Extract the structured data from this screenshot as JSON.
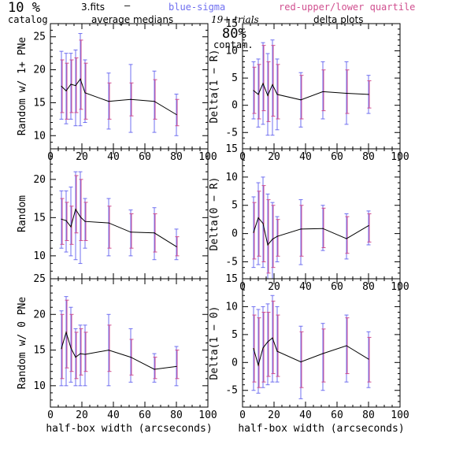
{
  "header": {
    "catalog_pct": "10 %",
    "catalog_label": "catalog",
    "file_name": "3.fits",
    "dash": "—",
    "avg_medians_label": "average medians",
    "blue_legend": "blue-sigma",
    "red_legend": "red-upper/lower quartile",
    "trials": "19+ trials",
    "contam_pct": "80%",
    "contam_label": "contam.",
    "delta_plots_label": "delta plots"
  },
  "colors": {
    "sigma": "#6f6ff0",
    "quartile": "#d04f8f",
    "line": "#000000"
  },
  "chart_data": [
    {
      "id": "random-1plus",
      "type": "line",
      "xlabel": "",
      "ylabel": "Random w/ 1+ PNe",
      "xlim": [
        0,
        100
      ],
      "ylim": [
        8,
        27
      ],
      "xticks": [
        0,
        20,
        40,
        60,
        80,
        100
      ],
      "yticks": [
        10,
        15,
        20,
        25
      ],
      "show_x_ticklabels": true,
      "show_y_ticklabels": true,
      "x": [
        7,
        10,
        13,
        16,
        19,
        22,
        37,
        51,
        66,
        80
      ],
      "y": [
        17.5,
        16.8,
        17.8,
        17.6,
        18.6,
        16.5,
        15.2,
        15.5,
        15.2,
        13.2
      ],
      "sigma_low": [
        12.5,
        11.8,
        12.5,
        11.5,
        11.5,
        12.0,
        11.0,
        10.5,
        10.5,
        10.0
      ],
      "sigma_high": [
        22.8,
        22.5,
        22.5,
        23.0,
        25.5,
        21.5,
        19.5,
        20.8,
        19.8,
        16.3
      ],
      "quart_low": [
        13.5,
        12.5,
        13.5,
        13.5,
        14.0,
        12.5,
        12.5,
        13.0,
        12.5,
        11.5
      ],
      "quart_high": [
        21.5,
        21.0,
        21.5,
        21.8,
        24.5,
        21.0,
        18.0,
        18.0,
        18.5,
        15.5
      ]
    },
    {
      "id": "delta-1-R",
      "type": "line",
      "xlabel": "",
      "ylabel": "Delta(1 − R)",
      "xlim": [
        0,
        100
      ],
      "ylim": [
        -8,
        15
      ],
      "xticks": [
        0,
        20,
        40,
        60,
        80,
        100
      ],
      "yticks": [
        -5,
        0,
        5,
        10,
        15
      ],
      "show_x_ticklabels": true,
      "show_y_ticklabels": true,
      "x": [
        7,
        10,
        13,
        16,
        19,
        22,
        37,
        51,
        66,
        80
      ],
      "y": [
        2.7,
        2.0,
        4.0,
        1.8,
        3.8,
        2.0,
        1.0,
        2.5,
        2.2,
        2.0
      ],
      "sigma_low": [
        -2.5,
        -4.0,
        -3.5,
        -5.5,
        -5.5,
        -4.5,
        -4.0,
        -2.5,
        -3.5,
        -1.5
      ],
      "sigma_high": [
        8.0,
        8.5,
        11.5,
        9.5,
        12.0,
        8.5,
        6.0,
        8.0,
        8.0,
        5.5
      ],
      "quart_low": [
        -1.5,
        -2.5,
        -1.0,
        -3.0,
        -2.0,
        -2.5,
        -2.5,
        -1.0,
        -1.5,
        -0.5
      ],
      "quart_high": [
        7.0,
        7.5,
        11.0,
        8.0,
        11.0,
        7.5,
        5.5,
        6.5,
        6.5,
        4.5
      ]
    },
    {
      "id": "random",
      "type": "line",
      "xlabel": "",
      "ylabel": "Random",
      "xlim": [
        0,
        100
      ],
      "ylim": [
        7,
        24
      ],
      "xticks": [
        0,
        20,
        40,
        60,
        80,
        100
      ],
      "yticks": [
        10,
        15,
        20
      ],
      "show_x_ticklabels": false,
      "show_y_ticklabels": true,
      "x": [
        7,
        10,
        13,
        16,
        19,
        22,
        37,
        51,
        66,
        80
      ],
      "y": [
        14.8,
        14.6,
        13.8,
        16.1,
        15.1,
        14.5,
        14.3,
        13.1,
        13.0,
        11.2
      ],
      "sigma_low": [
        11.0,
        10.5,
        10.0,
        9.5,
        9.0,
        11.0,
        10.0,
        10.0,
        9.5,
        9.5
      ],
      "sigma_high": [
        18.5,
        18.5,
        19.0,
        21.0,
        21.0,
        17.5,
        17.5,
        16.0,
        16.3,
        13.5
      ],
      "quart_low": [
        11.5,
        12.0,
        11.5,
        13.0,
        12.0,
        12.0,
        11.0,
        11.0,
        10.5,
        10.0
      ],
      "quart_high": [
        17.5,
        17.0,
        16.5,
        20.5,
        20.0,
        17.0,
        16.5,
        15.5,
        15.5,
        12.5
      ]
    },
    {
      "id": "delta-0-R",
      "type": "line",
      "xlabel": "",
      "ylabel": "Delta(0 − R)",
      "xlim": [
        0,
        100
      ],
      "ylim": [
        -8,
        15
      ],
      "xticks": [
        0,
        20,
        40,
        60,
        80,
        100
      ],
      "yticks": [
        -5,
        0,
        5,
        10,
        15
      ],
      "show_x_ticklabels": true,
      "show_y_ticklabels": true,
      "x": [
        7,
        10,
        13,
        16,
        19,
        22,
        37,
        51,
        66,
        80
      ],
      "y": [
        0.2,
        2.8,
        1.8,
        -2.0,
        -1.0,
        -0.5,
        0.8,
        0.9,
        -0.9,
        1.4
      ],
      "sigma_low": [
        -6.0,
        -5.5,
        -6.0,
        -8.0,
        -8.0,
        -5.0,
        -5.5,
        -3.0,
        -4.5,
        -2.0
      ],
      "sigma_high": [
        6.5,
        9.0,
        10.0,
        7.0,
        5.5,
        3.0,
        6.0,
        5.0,
        3.5,
        4.0
      ],
      "quart_low": [
        -4.5,
        -4.0,
        -5.0,
        -7.0,
        -6.0,
        -4.0,
        -4.0,
        -2.5,
        -3.5,
        -1.5
      ],
      "quart_high": [
        5.5,
        7.5,
        8.5,
        6.0,
        5.0,
        2.5,
        5.0,
        4.5,
        3.0,
        3.5
      ]
    },
    {
      "id": "random-0",
      "type": "line",
      "xlabel": "half-box width (arcseconds)",
      "ylabel": "Random w/ 0 PNe",
      "xlim": [
        0,
        100
      ],
      "ylim": [
        7,
        25
      ],
      "xticks": [
        0,
        20,
        40,
        60,
        80,
        100
      ],
      "yticks": [
        10,
        15,
        20,
        25
      ],
      "show_x_ticklabels": true,
      "show_y_ticklabels": true,
      "x": [
        7,
        10,
        13,
        16,
        19,
        22,
        37,
        51,
        66,
        80
      ],
      "y": [
        15.2,
        17.5,
        15.3,
        14.0,
        14.5,
        14.4,
        15.0,
        14.0,
        12.3,
        12.7
      ],
      "sigma_low": [
        10.0,
        10.0,
        10.5,
        10.0,
        10.0,
        10.0,
        10.0,
        10.5,
        10.5,
        10.0
      ],
      "sigma_high": [
        20.5,
        22.5,
        21.0,
        18.0,
        18.5,
        18.5,
        20.0,
        18.0,
        14.5,
        15.5
      ],
      "quart_low": [
        11.0,
        12.5,
        12.0,
        11.0,
        11.5,
        12.0,
        12.0,
        11.5,
        11.0,
        11.0
      ],
      "quart_high": [
        20.0,
        22.0,
        20.0,
        17.5,
        18.0,
        17.5,
        18.5,
        16.5,
        14.0,
        15.0
      ]
    },
    {
      "id": "delta-1-0",
      "type": "line",
      "xlabel": "half-box width (arcseconds)",
      "ylabel": "Delta(1 − 0)",
      "xlim": [
        0,
        100
      ],
      "ylim": [
        -8,
        15
      ],
      "xticks": [
        0,
        20,
        40,
        60,
        80,
        100
      ],
      "yticks": [
        -5,
        0,
        5,
        10,
        15
      ],
      "show_x_ticklabels": true,
      "show_y_ticklabels": true,
      "x": [
        7,
        10,
        13,
        16,
        19,
        22,
        37,
        51,
        66,
        80
      ],
      "y": [
        2.5,
        -0.5,
        2.6,
        3.7,
        4.4,
        2.0,
        0.1,
        1.6,
        3.0,
        0.6
      ],
      "sigma_low": [
        -5.0,
        -5.5,
        -4.5,
        -4.0,
        -3.5,
        -3.5,
        -6.5,
        -5.0,
        -3.5,
        -4.5
      ],
      "sigma_high": [
        10.0,
        9.5,
        10.0,
        10.5,
        12.0,
        10.0,
        6.5,
        7.0,
        8.5,
        5.5
      ],
      "quart_low": [
        -3.5,
        -4.5,
        -3.5,
        -2.5,
        -2.0,
        -2.5,
        -4.5,
        -3.5,
        -2.0,
        -3.5
      ],
      "quart_high": [
        8.5,
        8.0,
        9.0,
        9.0,
        11.0,
        8.5,
        5.5,
        6.0,
        8.0,
        4.5
      ]
    }
  ]
}
